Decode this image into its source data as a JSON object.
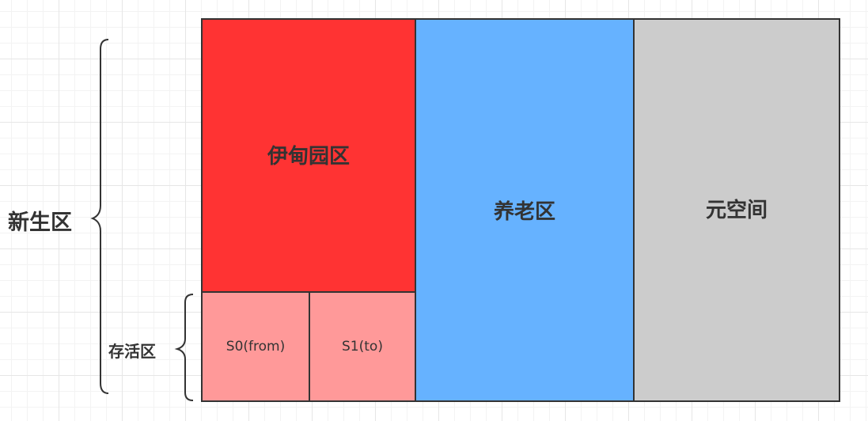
{
  "diagram": {
    "young_generation_label": "新生区",
    "survivor_label": "存活区",
    "regions": {
      "eden": {
        "label": "伊甸园区",
        "color": "#ff3333"
      },
      "s0": {
        "label": "S0(from)",
        "color": "#ff9999"
      },
      "s1": {
        "label": "S1(to)",
        "color": "#ff9999"
      },
      "old": {
        "label": "养老区",
        "color": "#66b2ff"
      },
      "meta": {
        "label": "元空间",
        "color": "#cccccc"
      }
    },
    "border_color": "#333333"
  }
}
